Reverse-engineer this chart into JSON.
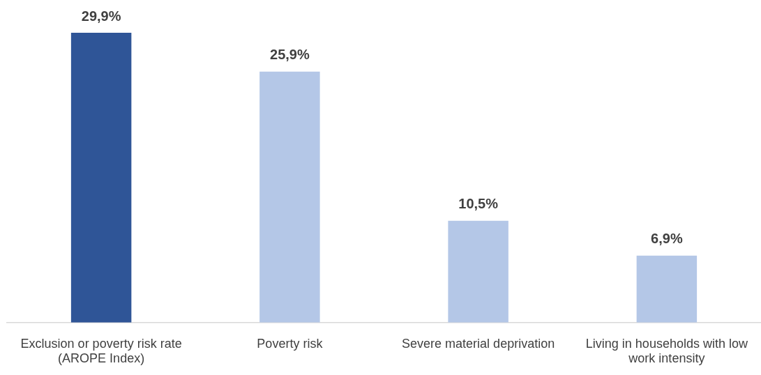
{
  "chart_data": {
    "type": "bar",
    "categories": [
      "Exclusion or poverty risk rate\n(AROPE Index)",
      "Poverty risk",
      "Severe material deprivation",
      "Living in households with low work intensity"
    ],
    "values": [
      29.9,
      25.9,
      10.5,
      6.9
    ],
    "colors": [
      "#2f5597",
      "#b4c7e7",
      "#b4c7e7",
      "#b4c7e7"
    ],
    "value_labels": [
      "29,9%",
      "25,9%",
      "10,5%",
      "6,9%"
    ],
    "grid": false,
    "legend": false
  }
}
